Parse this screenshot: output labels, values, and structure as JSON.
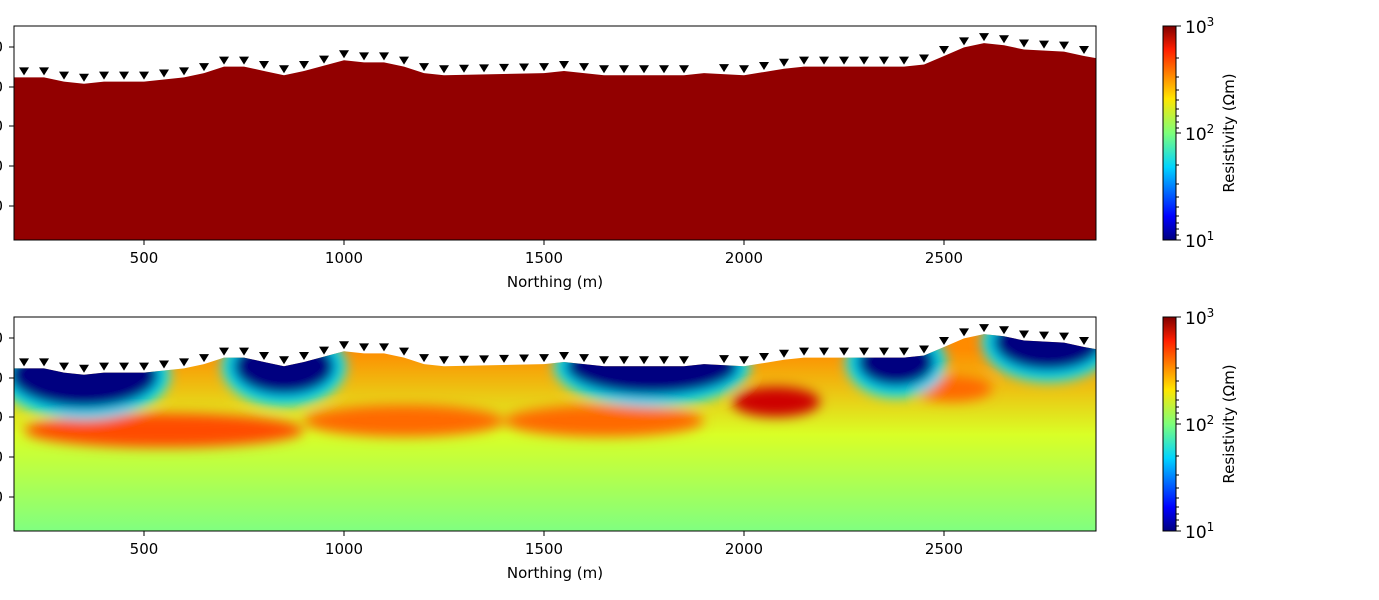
{
  "chart_data": [
    {
      "type": "heatmap",
      "panel": "reference-model",
      "title": "",
      "xlabel": "Northing (m)",
      "ylabel": "",
      "xlim": [
        175,
        2880
      ],
      "xticks": [
        500,
        1000,
        1500,
        2000,
        2500
      ],
      "x_tick_labels": [
        "500",
        "1000",
        "1500",
        "2000",
        "2500"
      ],
      "fill_color": "#920000",
      "fill_resistivity_ohm_m": 1000,
      "topography": {
        "x": [
          175,
          250,
          300,
          350,
          400,
          500,
          600,
          650,
          700,
          750,
          800,
          850,
          900,
          1000,
          1050,
          1100,
          1150,
          1200,
          1250,
          1500,
          1550,
          1600,
          1650,
          1750,
          1850,
          1900,
          2000,
          2100,
          2150,
          2300,
          2400,
          2450,
          2500,
          2550,
          2600,
          2650,
          2700,
          2800,
          2850,
          2880
        ],
        "relative_height": [
          0.76,
          0.76,
          0.74,
          0.73,
          0.74,
          0.74,
          0.76,
          0.78,
          0.81,
          0.81,
          0.79,
          0.77,
          0.79,
          0.84,
          0.83,
          0.83,
          0.81,
          0.78,
          0.77,
          0.78,
          0.79,
          0.78,
          0.77,
          0.77,
          0.77,
          0.78,
          0.77,
          0.8,
          0.81,
          0.81,
          0.81,
          0.82,
          0.86,
          0.9,
          0.92,
          0.91,
          0.89,
          0.88,
          0.86,
          0.85
        ]
      },
      "stations_x": [
        200,
        250,
        300,
        350,
        400,
        450,
        500,
        550,
        600,
        650,
        700,
        750,
        800,
        850,
        900,
        950,
        1000,
        1050,
        1100,
        1150,
        1200,
        1250,
        1300,
        1350,
        1400,
        1450,
        1500,
        1550,
        1600,
        1650,
        1700,
        1750,
        1800,
        1850,
        1950,
        2000,
        2050,
        2100,
        2150,
        2200,
        2250,
        2300,
        2350,
        2400,
        2450,
        2500,
        2550,
        2600,
        2650,
        2700,
        2750,
        2800,
        2850
      ],
      "colorbar": {
        "label": "Resistivity (Ωm)",
        "scale": "log",
        "min": 10,
        "max": 1000,
        "ticks": [
          {
            "base": "10",
            "exp": "3"
          },
          {
            "base": "10",
            "exp": "2"
          },
          {
            "base": "10",
            "exp": "1"
          }
        ]
      }
    },
    {
      "type": "heatmap",
      "panel": "recovered-model",
      "title": "",
      "xlabel": "Northing (m)",
      "ylabel": "",
      "xlim": [
        175,
        2880
      ],
      "xticks": [
        500,
        1000,
        1500,
        2000,
        2500
      ],
      "x_tick_labels": [
        "500",
        "1000",
        "1500",
        "2000",
        "2500"
      ],
      "background_resistivity_ohm_m": 100,
      "conductive_bodies": [
        {
          "x_center": 350,
          "x_width": 380,
          "depth_frac": 0.0,
          "thickness_frac": 0.16,
          "resistivity_ohm_m": 10
        },
        {
          "x_center": 850,
          "x_width": 260,
          "depth_frac": 0.0,
          "thickness_frac": 0.14,
          "resistivity_ohm_m": 10
        },
        {
          "x_center": 1770,
          "x_width": 440,
          "depth_frac": 0.0,
          "thickness_frac": 0.14,
          "resistivity_ohm_m": 10
        },
        {
          "x_center": 2380,
          "x_width": 200,
          "depth_frac": 0.02,
          "thickness_frac": 0.12,
          "resistivity_ohm_m": 10
        },
        {
          "x_center": 2760,
          "x_width": 280,
          "depth_frac": 0.0,
          "thickness_frac": 0.14,
          "resistivity_ohm_m": 10
        }
      ],
      "resistive_bodies": [
        {
          "x_center": 550,
          "x_width": 700,
          "depth_frac": 0.2,
          "thickness_frac": 0.16,
          "resistivity_ohm_m": 400
        },
        {
          "x_center": 1150,
          "x_width": 500,
          "depth_frac": 0.22,
          "thickness_frac": 0.15,
          "resistivity_ohm_m": 350
        },
        {
          "x_center": 1650,
          "x_width": 500,
          "depth_frac": 0.18,
          "thickness_frac": 0.15,
          "resistivity_ohm_m": 350
        },
        {
          "x_center": 2080,
          "x_width": 220,
          "depth_frac": 0.12,
          "thickness_frac": 0.14,
          "resistivity_ohm_m": 700
        },
        {
          "x_center": 2520,
          "x_width": 200,
          "depth_frac": 0.15,
          "thickness_frac": 0.12,
          "resistivity_ohm_m": 350
        }
      ],
      "colorbar": {
        "label": "Resistivity (Ωm)",
        "scale": "log",
        "min": 10,
        "max": 1000,
        "ticks": [
          {
            "base": "10",
            "exp": "3"
          },
          {
            "base": "10",
            "exp": "2"
          },
          {
            "base": "10",
            "exp": "1"
          }
        ]
      }
    }
  ]
}
